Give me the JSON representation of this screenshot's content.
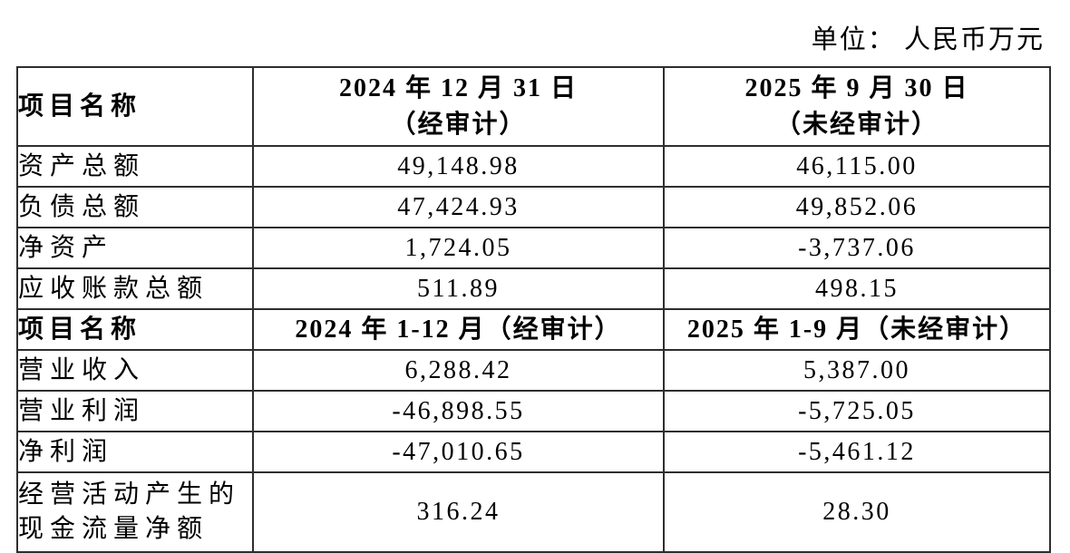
{
  "unit_label": "单位： 人民币万元",
  "colors": {
    "background": "#ffffff",
    "text": "#000000",
    "border": "#2e2e2e"
  },
  "table": {
    "section1": {
      "header": {
        "name_col": "项目名称",
        "col_2024": "2024 年 12 月 31 日\n（经审计）",
        "col_2025": "2025 年 9 月 30 日\n（未经审计）"
      },
      "rows": [
        {
          "label": "资产总额",
          "v2024": "49,148.98",
          "v2025": "46,115.00"
        },
        {
          "label": "负债总额",
          "v2024": "47,424.93",
          "v2025": "49,852.06"
        },
        {
          "label": "净资产",
          "v2024": "1,724.05",
          "v2025": "-3,737.06"
        },
        {
          "label": "应收账款总额",
          "v2024": "511.89",
          "v2025": "498.15"
        }
      ]
    },
    "section2": {
      "header": {
        "name_col": "项目名称",
        "col_2024": "2024 年 1-12 月（经审计）",
        "col_2025": "2025 年 1-9 月（未经审计）"
      },
      "rows": [
        {
          "label": "营业收入",
          "v2024": "6,288.42",
          "v2025": "5,387.00"
        },
        {
          "label": "营业利润",
          "v2024": "-46,898.55",
          "v2025": "-5,725.05"
        },
        {
          "label": "净利润",
          "v2024": "-47,010.65",
          "v2025": "-5,461.12"
        },
        {
          "label": "经营活动产生的\n现金流量净额",
          "v2024": "316.24",
          "v2025": "28.30"
        }
      ]
    }
  }
}
